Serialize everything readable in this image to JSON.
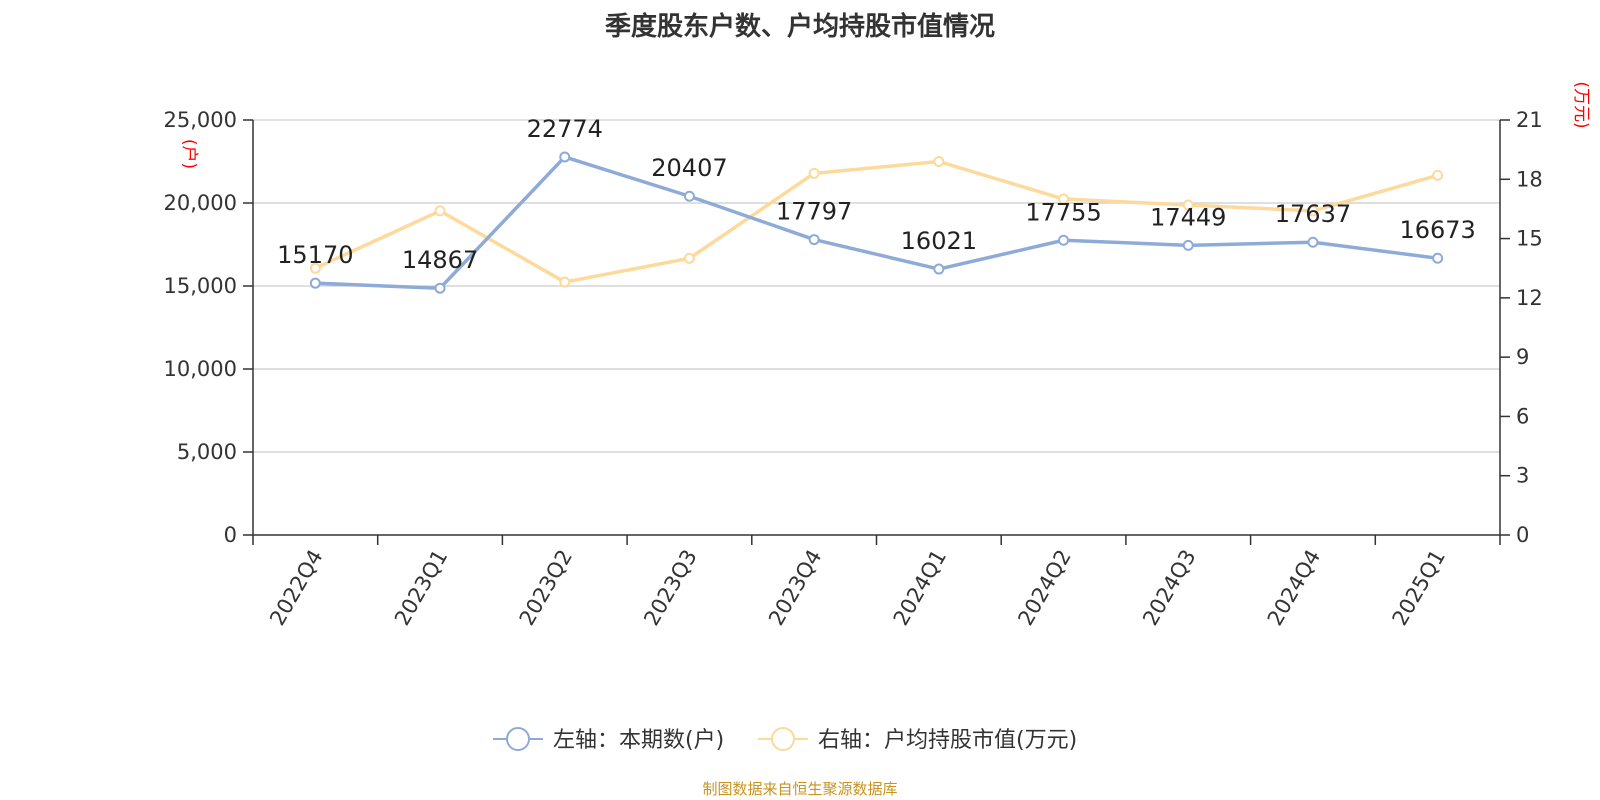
{
  "chart_data": {
    "type": "line",
    "title": "季度股东户数、户均持股市值情况",
    "categories": [
      "2022Q4",
      "2023Q1",
      "2023Q2",
      "2023Q3",
      "2023Q4",
      "2024Q1",
      "2024Q2",
      "2024Q3",
      "2024Q4",
      "2025Q1"
    ],
    "left_axis": {
      "unit": "(户)",
      "ylim": [
        0,
        25000
      ],
      "ticks": [
        "0",
        "5,000",
        "10,000",
        "15,000",
        "20,000",
        "25,000"
      ],
      "tick_values": [
        0,
        5000,
        10000,
        15000,
        20000,
        25000
      ]
    },
    "right_axis": {
      "unit": "(万元)",
      "ylim": [
        0,
        21
      ],
      "ticks": [
        "0",
        "3",
        "6",
        "9",
        "12",
        "15",
        "18",
        "21"
      ],
      "tick_values": [
        0,
        3,
        6,
        9,
        12,
        15,
        18,
        21
      ]
    },
    "grid": true,
    "legend_position": "bottom",
    "series": [
      {
        "name": "左轴：本期数(户)",
        "axis": "left",
        "color": "#8eabd7",
        "values": [
          15170,
          14867,
          22774,
          20407,
          17797,
          16021,
          17755,
          17449,
          17637,
          16673
        ],
        "labels": [
          "15170",
          "14867",
          "22774",
          "20407",
          "17797",
          "16021",
          "17755",
          "17449",
          "17637",
          "16673"
        ]
      },
      {
        "name": "右轴：户均持股市值(万元)",
        "axis": "right",
        "color": "#fdd99b",
        "values": [
          13.5,
          16.4,
          12.8,
          14.0,
          18.3,
          18.9,
          17.0,
          16.7,
          16.4,
          18.2
        ]
      }
    ]
  },
  "source_note": "制图数据来自恒生聚源数据库"
}
